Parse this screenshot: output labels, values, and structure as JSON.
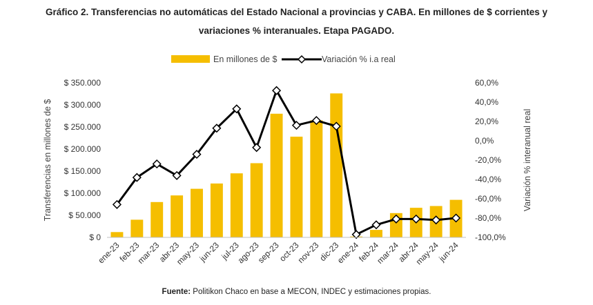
{
  "title_line1": "Gráfico 2. Transferencias no automáticas del Estado Nacional a provincias y CABA. En millones de $ corrientes y",
  "title_line2": "variaciones % interanuales. Etapa PAGADO.",
  "source_label": "Fuente:",
  "source_text": "Politikon Chaco en base a MECON, INDEC y estimaciones propias.",
  "colors": {
    "bar": "#F5BE00",
    "line": "#000000",
    "marker_fill": "#ffffff"
  },
  "chart_data": {
    "type": "bar",
    "combo": "bar+line",
    "categories": [
      "ene-23",
      "feb-23",
      "mar-23",
      "abr-23",
      "may-23",
      "jun-23",
      "jul-23",
      "ago-23",
      "sep-23",
      "oct-23",
      "nov-23",
      "dic-23",
      "ene-24",
      "feb-24",
      "mar-24",
      "abr-24",
      "may-24",
      "jun-24"
    ],
    "series": [
      {
        "name": "En millones de $",
        "type": "bar",
        "axis": "left",
        "values": [
          12000,
          40000,
          80000,
          95000,
          110000,
          122000,
          145000,
          168000,
          280000,
          228000,
          265000,
          326000,
          2000,
          17000,
          55000,
          67000,
          71000,
          85000
        ]
      },
      {
        "name": "Variación % i.a real",
        "type": "line",
        "axis": "right",
        "values": [
          -66,
          -38,
          -24,
          -36,
          -14,
          13,
          33,
          -7,
          52,
          16,
          21,
          15,
          -97,
          -87,
          -81,
          -81,
          -82,
          -80
        ]
      }
    ],
    "ylabel": "Transferencias en millones de $",
    "y2label": "Variación % interanual real",
    "ylim": [
      0,
      350000
    ],
    "y2lim": [
      -100,
      60
    ],
    "yticks": [
      "$ 0",
      "$ 50.000",
      "$ 100.000",
      "$ 150.000",
      "$ 200.000",
      "$ 250.000",
      "$ 300.000",
      "$ 350.000"
    ],
    "y2ticks": [
      "-100,0%",
      "-80,0%",
      "-60,0%",
      "-40,0%",
      "-20,0%",
      "0,0%",
      "20,0%",
      "40,0%",
      "60,0%"
    ],
    "legend_position": "top",
    "grid": false
  }
}
